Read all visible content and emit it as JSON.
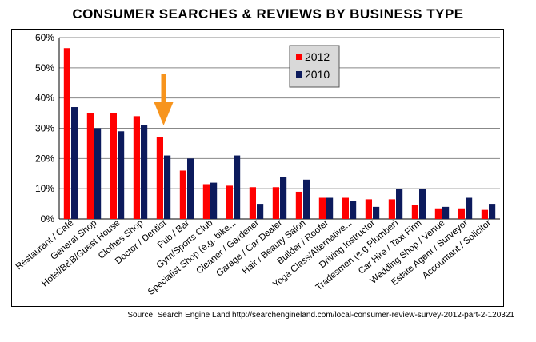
{
  "chart_data": {
    "type": "bar",
    "title": "CONSUMER SEARCHES & REVIEWS BY BUSINESS TYPE",
    "xlabel": "",
    "ylabel": "",
    "ylim": [
      0,
      60
    ],
    "yticks": [
      "0%",
      "10%",
      "20%",
      "30%",
      "40%",
      "50%",
      "60%"
    ],
    "grid": true,
    "legend_position": "top-center",
    "categories": [
      "Restaurant / Café",
      "General Shop",
      "Hotel/B&B/Guest House",
      "Clothes Shop",
      "Doctor / Dentist",
      "Pub / Bar",
      "Gym/Sports Club",
      "Specialist Shop (e.g. bike...",
      "Cleaner / Gardener",
      "Garage / Car Dealer",
      "Hair / Beauty Salon",
      "Builder / Roofer",
      "Yoga Class/Alternative...",
      "Driving Instructor",
      "Tradesmen (e.g Plumber)",
      "Car Hire / Taxi Firm",
      "Wedding Shop / Venue",
      "Estate Agent / Surveyor",
      "Accountant / Solicitor"
    ],
    "series": [
      {
        "name": "2012",
        "color": "#ff0000",
        "values": [
          56.5,
          35,
          35,
          34,
          27,
          16,
          11.5,
          11,
          10.5,
          10.5,
          9,
          7,
          7,
          6.5,
          6.5,
          4.5,
          3.5,
          3.5,
          3
        ]
      },
      {
        "name": "2010",
        "color": "#0c1a5c",
        "values": [
          37,
          30,
          29,
          31,
          21,
          20,
          12,
          21,
          5,
          14,
          13,
          7,
          6,
          4,
          10,
          10,
          4,
          7,
          5
        ]
      }
    ],
    "annotations": [
      {
        "type": "arrow",
        "color": "#f7941d",
        "target_category": "Doctor / Dentist"
      }
    ]
  },
  "source": "Source: Search Engine Land http://searchengineland.com/local-consumer-review-survey-2012-part-2-120321"
}
